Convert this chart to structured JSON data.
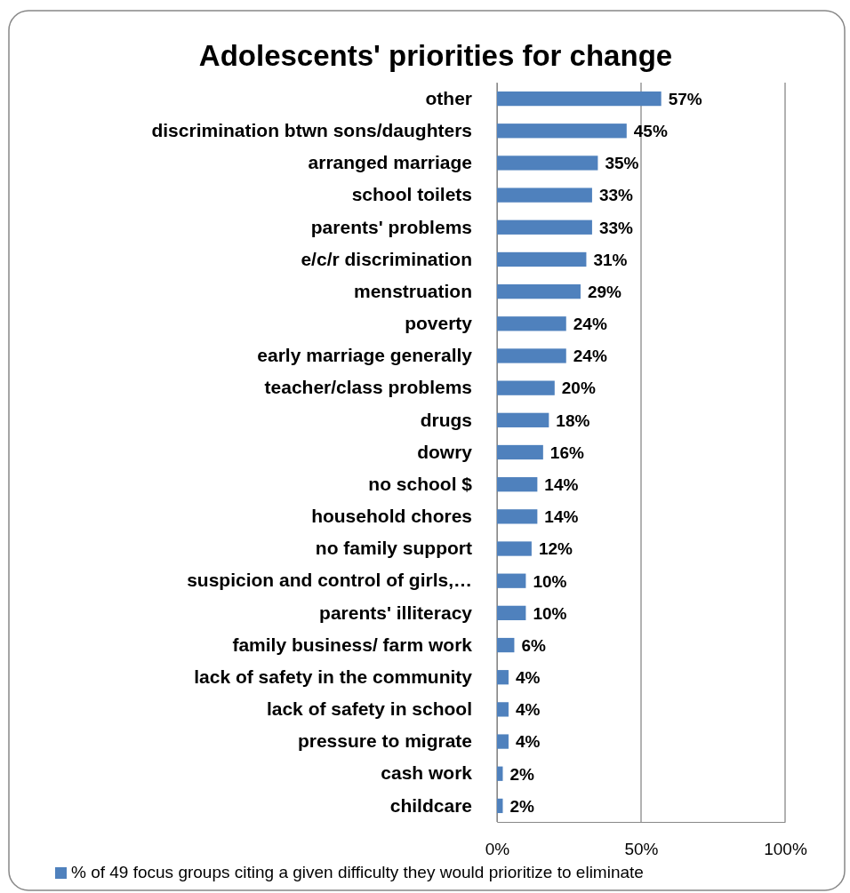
{
  "chart_data": {
    "type": "bar",
    "orientation": "horizontal",
    "title": "Adolescents' priorities for change",
    "categories": [
      "other",
      "discrimination btwn sons/daughters",
      "arranged marriage",
      "school toilets",
      "parents' problems",
      "e/c/r discrimination",
      "menstruation",
      "poverty",
      "early marriage generally",
      "teacher/class problems",
      "drugs",
      "dowry",
      "no school $",
      "household chores",
      "no family support",
      "suspicion and control of girls,…",
      "parents' illiteracy",
      "family business/ farm work",
      "lack of safety in the community",
      "lack of safety in school",
      "pressure to migrate",
      "cash work",
      "childcare"
    ],
    "series": [
      {
        "name": "% of 49 focus groups citing a given difficulty they would prioritize to eliminate",
        "color": "#4f81bd",
        "values": [
          57,
          45,
          35,
          33,
          33,
          31,
          29,
          24,
          24,
          20,
          18,
          16,
          14,
          14,
          12,
          10,
          10,
          6,
          4,
          4,
          4,
          2,
          2
        ],
        "value_labels": [
          "57%",
          "45%",
          "35%",
          "33%",
          "33%",
          "31%",
          "29%",
          "24%",
          "24%",
          "20%",
          "18%",
          "16%",
          "14%",
          "14%",
          "12%",
          "10%",
          "10%",
          "6%",
          "4%",
          "4%",
          "4%",
          "2%",
          "2%"
        ]
      }
    ],
    "xlim": [
      0,
      100
    ],
    "xticks": [
      {
        "value": 0,
        "label": "0%"
      },
      {
        "value": 50,
        "label": "50%"
      },
      {
        "value": 100,
        "label": "100%"
      }
    ],
    "grid": "x",
    "legend": "bottom"
  }
}
